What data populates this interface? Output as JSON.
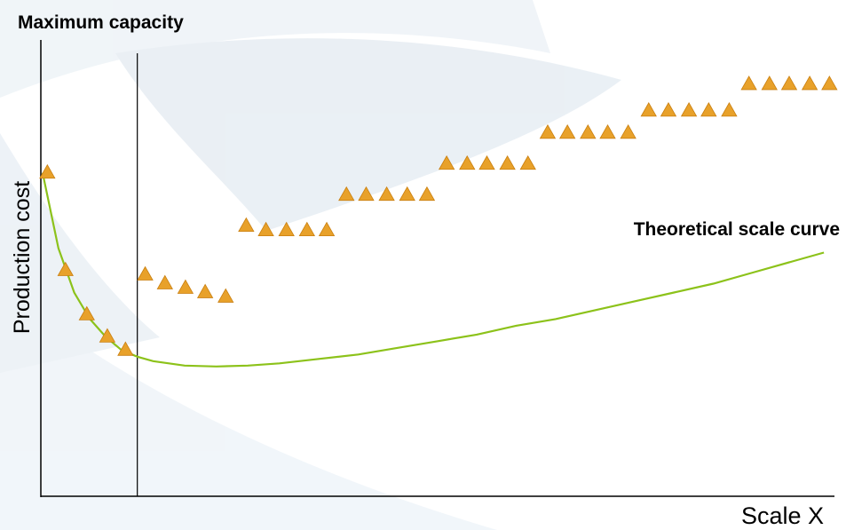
{
  "chart_data": {
    "type": "scatter",
    "annotations": {
      "max_capacity": "Maximum capacity",
      "curve_label": "Theoretical scale curve"
    },
    "xlabel": "Scale X",
    "ylabel": "Production cost",
    "xlim": [
      0,
      100
    ],
    "ylim": [
      0,
      100
    ],
    "grid": false,
    "max_capacity_x": 12,
    "colors": {
      "points": "#e8a12a",
      "points_edge": "#c97f10",
      "curve": "#8cc21a",
      "axis": "#000000",
      "background_shape": "#dde6ee"
    },
    "series": [
      {
        "kind": "points",
        "marker": "triangle",
        "x": [
          0.6,
          2.9,
          5.6,
          8.2,
          10.5,
          13.0,
          15.5,
          18.1,
          20.6,
          23.2,
          25.8,
          28.3,
          30.9,
          33.5,
          36.0,
          38.5,
          41.0,
          43.6,
          46.2,
          48.7,
          51.2,
          53.8,
          56.3,
          58.9,
          61.5,
          64.0,
          66.5,
          69.1,
          71.6,
          74.2,
          76.8,
          79.3,
          81.9,
          84.4,
          87.0,
          89.5,
          92.1,
          94.6,
          97.2,
          99.7
        ],
        "y": [
          73,
          51,
          41,
          36,
          33,
          50,
          48,
          47,
          46,
          45,
          61,
          60,
          60,
          60,
          60,
          68,
          68,
          68,
          68,
          68,
          75,
          75,
          75,
          75,
          75,
          82,
          82,
          82,
          82,
          82,
          87,
          87,
          87,
          87,
          87,
          93,
          93,
          93,
          93,
          93
        ]
      },
      {
        "kind": "curve",
        "x": [
          0,
          2,
          4,
          6,
          8,
          10,
          12,
          14,
          18,
          22,
          26,
          30,
          35,
          40,
          45,
          50,
          55,
          60,
          65,
          70,
          75,
          80,
          85,
          90,
          95,
          99
        ],
        "y": [
          73,
          56,
          46,
          40,
          36,
          33,
          31.5,
          30.5,
          29.5,
          29.3,
          29.5,
          30,
          31,
          32,
          33.5,
          35,
          36.5,
          38.5,
          40,
          42,
          44,
          46,
          48,
          50.5,
          53,
          55
        ]
      }
    ]
  }
}
